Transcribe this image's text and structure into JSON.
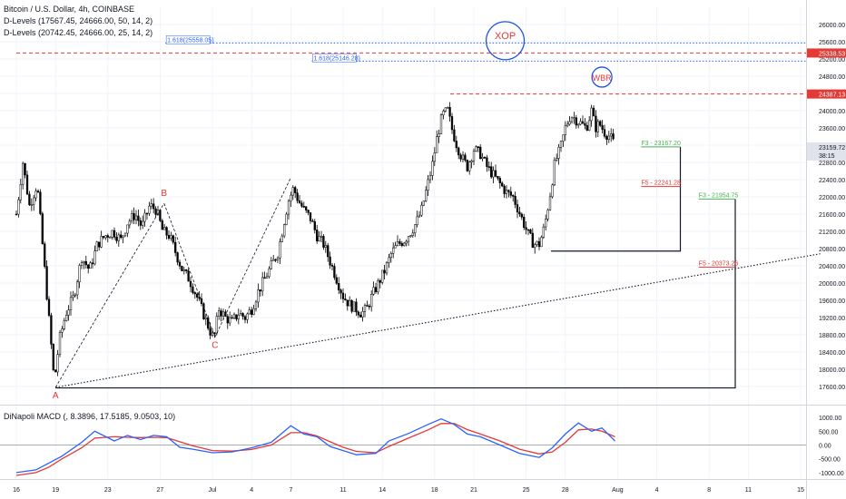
{
  "legend": {
    "title": "Bitcoin / U.S. Dollar, 4h, COINBASE",
    "dlevels_1": "D-Levels (17567.45, 24666.00, 50, 14, 2)",
    "dlevels_2": "D-Levels (20742.45, 24666.00, 25, 14, 2)",
    "macd": "DiNapoli MACD (, 8.3896, 17.5185, 9.0503, 10)"
  },
  "colors": {
    "candle": "#000000",
    "pattern_label": "#e53935",
    "circle": "#1e53e5",
    "dotted_blue": "#2962ff",
    "dashed_red": "#e53935",
    "target_green": "#4caf50",
    "target_red": "#e53935",
    "macd_blue": "#2962ff",
    "macd_red": "#e53935",
    "grid": "#f0f3fa"
  },
  "chart_data": {
    "type": "candlestick",
    "price_axis": {
      "ylim": [
        17200,
        26400
      ],
      "ticks": [
        26000,
        25600,
        25200,
        24800,
        24400,
        24000,
        23600,
        23200,
        22800,
        22400,
        22000,
        21600,
        21200,
        20800,
        20400,
        20000,
        19600,
        19200,
        18800,
        18400,
        18000,
        17600
      ],
      "tick_labels": [
        "26000.00",
        "25600.00",
        "25200.00",
        "24800.00",
        "24400.00",
        "24000.00",
        "23600.00",
        "23200.00",
        "22800.00",
        "22400.00",
        "22000.00",
        "21600.00",
        "21200.00",
        "20800.00",
        "20400.00",
        "20000.00",
        "19600.00",
        "19200.00",
        "18800.00",
        "18400.00",
        "18000.00",
        "17600.00"
      ],
      "price_badges": [
        {
          "value": 25338.53,
          "label": "25338.53",
          "color": "#e53935"
        },
        {
          "value": 24387.13,
          "label": "24387.13",
          "color": "#e53935"
        },
        {
          "value": 23159.72,
          "label": "23159.72",
          "color": "#e0e3eb",
          "sub": "38:15"
        }
      ]
    },
    "time_axis": {
      "ticks": [
        "16",
        "19",
        "23",
        "27",
        "Jul",
        "4",
        "7",
        "11",
        "14",
        "18",
        "21",
        "25",
        "28",
        "Aug",
        "4",
        "8",
        "11",
        "15"
      ],
      "tick_day_index": [
        0,
        3,
        7,
        11,
        15,
        18,
        21,
        25,
        28,
        32,
        35,
        39,
        42,
        46,
        49,
        53,
        56,
        60
      ]
    },
    "close_path": [
      [
        0,
        21600
      ],
      [
        0.5,
        22800
      ],
      [
        1,
        21800
      ],
      [
        1.6,
        22300
      ],
      [
        2.2,
        20200
      ],
      [
        2.6,
        18800
      ],
      [
        2.9,
        17700
      ],
      [
        3.3,
        18700
      ],
      [
        3.8,
        19300
      ],
      [
        4.4,
        19700
      ],
      [
        5,
        20600
      ],
      [
        5.6,
        20300
      ],
      [
        6.2,
        20900
      ],
      [
        6.8,
        21100
      ],
      [
        7.4,
        21200
      ],
      [
        8,
        21000
      ],
      [
        8.5,
        21400
      ],
      [
        9.1,
        21600
      ],
      [
        9.6,
        21300
      ],
      [
        10.2,
        21800
      ],
      [
        10.7,
        21700
      ],
      [
        11.2,
        21200
      ],
      [
        11.7,
        21100
      ],
      [
        12.2,
        20700
      ],
      [
        12.7,
        20300
      ],
      [
        13.2,
        20100
      ],
      [
        13.8,
        19700
      ],
      [
        14.3,
        19300
      ],
      [
        14.8,
        18900
      ],
      [
        15.1,
        18700
      ],
      [
        15.5,
        19400
      ],
      [
        16,
        19200
      ],
      [
        16.5,
        19100
      ],
      [
        17,
        19300
      ],
      [
        17.5,
        19200
      ],
      [
        18,
        19400
      ],
      [
        18.5,
        19800
      ],
      [
        19,
        20100
      ],
      [
        19.5,
        20400
      ],
      [
        20,
        20700
      ],
      [
        20.4,
        21300
      ],
      [
        20.8,
        21900
      ],
      [
        21.2,
        22200
      ],
      [
        21.6,
        21900
      ],
      [
        22,
        21700
      ],
      [
        22.5,
        21500
      ],
      [
        23,
        21100
      ],
      [
        23.5,
        20900
      ],
      [
        24,
        20500
      ],
      [
        24.5,
        20100
      ],
      [
        25,
        19700
      ],
      [
        25.5,
        19500
      ],
      [
        26,
        19400
      ],
      [
        26.4,
        19300
      ],
      [
        26.8,
        19400
      ],
      [
        27.2,
        19700
      ],
      [
        27.7,
        20000
      ],
      [
        28.2,
        20300
      ],
      [
        28.7,
        20700
      ],
      [
        29.2,
        20900
      ],
      [
        29.7,
        21000
      ],
      [
        30.2,
        21200
      ],
      [
        30.6,
        21400
      ],
      [
        31,
        21700
      ],
      [
        31.4,
        22200
      ],
      [
        31.8,
        22700
      ],
      [
        32.2,
        23400
      ],
      [
        32.6,
        23900
      ],
      [
        33,
        24000
      ],
      [
        33.3,
        23600
      ],
      [
        33.7,
        23200
      ],
      [
        34.1,
        22900
      ],
      [
        34.5,
        22700
      ],
      [
        35,
        23100
      ],
      [
        35.5,
        23000
      ],
      [
        36,
        22700
      ],
      [
        36.5,
        22500
      ],
      [
        37,
        22300
      ],
      [
        37.5,
        22100
      ],
      [
        38,
        22000
      ],
      [
        38.4,
        21700
      ],
      [
        38.8,
        21400
      ],
      [
        39.2,
        21100
      ],
      [
        39.6,
        20900
      ],
      [
        40,
        20900
      ],
      [
        40.4,
        21300
      ],
      [
        40.8,
        22000
      ],
      [
        41.2,
        22800
      ],
      [
        41.6,
        23100
      ],
      [
        42,
        23600
      ],
      [
        42.4,
        23900
      ],
      [
        42.8,
        23800
      ],
      [
        43.2,
        23700
      ],
      [
        43.6,
        23600
      ],
      [
        44,
        24000
      ],
      [
        44.3,
        23600
      ],
      [
        44.6,
        23700
      ],
      [
        45,
        23500
      ],
      [
        45.4,
        23400
      ],
      [
        45.8,
        23200
      ]
    ],
    "wave_points": [
      {
        "label": "A",
        "day": 3.0,
        "price": 17580
      },
      {
        "label": "B",
        "day": 11.3,
        "price": 21850
      },
      {
        "label": "C",
        "day": 15.2,
        "price": 18750
      },
      {
        "day": 21.0,
        "price": 22450
      }
    ],
    "swing_points": [
      {
        "day": 27.3,
        "price": 18900
      }
    ],
    "trendline": {
      "from_day": 3.0,
      "from_price": 17580,
      "to_day": 61.5,
      "to_price": 20680
    },
    "levels": [
      {
        "label": "1.618(25558.05)",
        "price": 25570,
        "style": "dotted",
        "color": "#2962ff",
        "from_day": 11.4,
        "to_day": 61.5
      },
      {
        "label": "1.618(25146.28)",
        "price": 25150,
        "style": "dotted",
        "color": "#2962ff",
        "from_day": 22.6,
        "to_day": 61.5
      },
      {
        "label": "",
        "price": 25338.53,
        "style": "dashed",
        "color": "#e53935",
        "from_day": 0,
        "to_day": 61.5
      },
      {
        "label": "",
        "price": 24387.13,
        "style": "dashed",
        "color": "#e53935",
        "from_day": 33.2,
        "to_day": 61.5
      }
    ],
    "targets": [
      {
        "label": "F3 - 23167.20",
        "price": 23160,
        "color": "#4caf50",
        "from_day": 47.8,
        "to_day": 50.8
      },
      {
        "label": "F5 - 22241.28",
        "price": 22240,
        "color": "#e53935",
        "from_day": 47.8,
        "to_day": 50.8
      },
      {
        "label": "F3 - 21954.75",
        "price": 21950,
        "color": "#4caf50",
        "from_day": 52.2,
        "to_day": 55.0
      },
      {
        "label": "F5 - 20373.26",
        "price": 20370,
        "color": "#e53935",
        "from_day": 52.2,
        "to_day": 55.0
      }
    ],
    "boxes": [
      {
        "from_day": 40.9,
        "to_day": 50.8,
        "top": 23160,
        "bottom": 20742
      },
      {
        "from_day": 3.0,
        "to_day": 55.0,
        "top": 21950,
        "bottom": 17567
      }
    ],
    "annotations": [
      {
        "text": "XOP",
        "day": 37.4,
        "price": 25750,
        "shape": "circle"
      },
      {
        "text": "WBR",
        "day": 44.8,
        "price": 24780,
        "shape": "circle"
      }
    ],
    "macd": {
      "ylim": [
        -1200,
        1400
      ],
      "ticks": [
        1000,
        500,
        0,
        -500,
        -1000
      ],
      "tick_labels": [
        "1000.00",
        "500.00",
        "0.00",
        "-500.00",
        "-1000.00"
      ],
      "blue": [
        [
          0,
          -1000
        ],
        [
          1.5,
          -900
        ],
        [
          2.5,
          -650
        ],
        [
          3.5,
          -400
        ],
        [
          5,
          100
        ],
        [
          6,
          500
        ],
        [
          7.5,
          150
        ],
        [
          8.5,
          350
        ],
        [
          9.5,
          200
        ],
        [
          10.5,
          350
        ],
        [
          11.5,
          300
        ],
        [
          12.5,
          -80
        ],
        [
          13.5,
          -150
        ],
        [
          15,
          -280
        ],
        [
          16.5,
          -250
        ],
        [
          18,
          -100
        ],
        [
          19.5,
          100
        ],
        [
          21,
          700
        ],
        [
          22,
          400
        ],
        [
          23,
          300
        ],
        [
          24,
          -50
        ],
        [
          25,
          -200
        ],
        [
          26,
          -350
        ],
        [
          27.5,
          -300
        ],
        [
          28.5,
          150
        ],
        [
          30,
          420
        ],
        [
          31.5,
          750
        ],
        [
          32.5,
          950
        ],
        [
          33.5,
          750
        ],
        [
          34.5,
          400
        ],
        [
          35.5,
          300
        ],
        [
          37,
          0
        ],
        [
          38.5,
          -300
        ],
        [
          40,
          -450
        ],
        [
          41,
          -100
        ],
        [
          42,
          400
        ],
        [
          43,
          800
        ],
        [
          44,
          500
        ],
        [
          44.8,
          620
        ],
        [
          45.8,
          150
        ]
      ],
      "red": [
        [
          0,
          -1100
        ],
        [
          1.5,
          -1000
        ],
        [
          2.5,
          -800
        ],
        [
          3.5,
          -500
        ],
        [
          5,
          -100
        ],
        [
          6,
          250
        ],
        [
          7.5,
          300
        ],
        [
          8.5,
          280
        ],
        [
          9.5,
          270
        ],
        [
          10.5,
          280
        ],
        [
          11.5,
          270
        ],
        [
          12.5,
          120
        ],
        [
          13.5,
          -30
        ],
        [
          15,
          -200
        ],
        [
          16.5,
          -220
        ],
        [
          18,
          -160
        ],
        [
          19.5,
          0
        ],
        [
          21,
          450
        ],
        [
          22,
          450
        ],
        [
          23,
          330
        ],
        [
          24,
          120
        ],
        [
          25,
          -80
        ],
        [
          26,
          -230
        ],
        [
          27.5,
          -280
        ],
        [
          28.5,
          -50
        ],
        [
          30,
          250
        ],
        [
          31.5,
          550
        ],
        [
          32.5,
          780
        ],
        [
          33.5,
          780
        ],
        [
          34.5,
          560
        ],
        [
          35.5,
          400
        ],
        [
          37,
          150
        ],
        [
          38.5,
          -150
        ],
        [
          40,
          -320
        ],
        [
          41,
          -250
        ],
        [
          42,
          100
        ],
        [
          43,
          550
        ],
        [
          44,
          580
        ],
        [
          44.8,
          500
        ],
        [
          45.8,
          300
        ]
      ]
    }
  }
}
